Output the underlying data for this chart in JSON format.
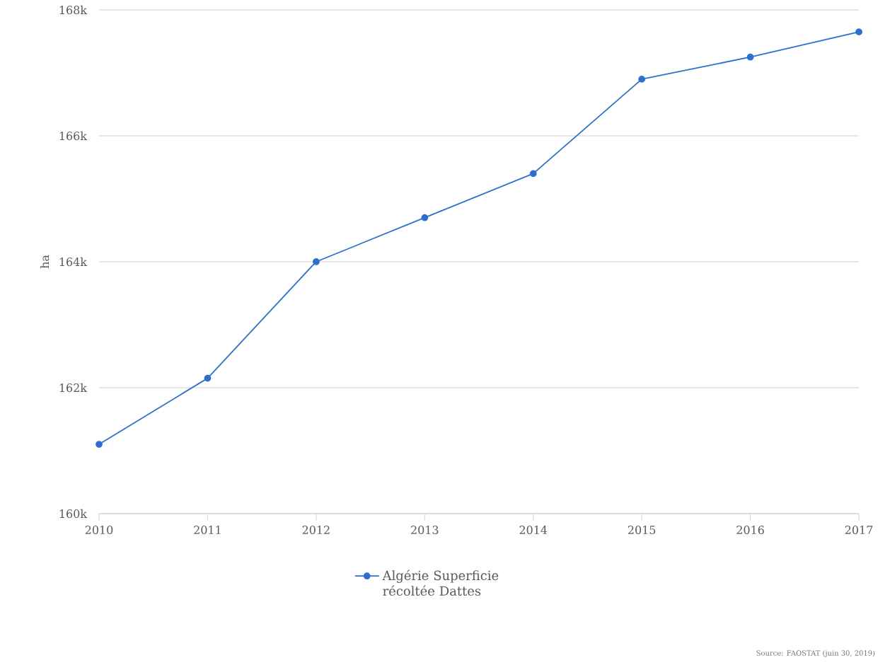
{
  "chart_data": {
    "type": "line",
    "ylabel": "ha",
    "categories": [
      "2010",
      "2011",
      "2012",
      "2013",
      "2014",
      "2015",
      "2016",
      "2017"
    ],
    "series": [
      {
        "name": "Algérie Superficie récoltée Dattes",
        "color": "#2e6fcc",
        "values": [
          161100,
          162150,
          164000,
          164700,
          165400,
          166900,
          167250,
          167650
        ]
      }
    ],
    "ylim": [
      160000,
      168000
    ],
    "yticks": [
      {
        "value": 160000,
        "label": "160k"
      },
      {
        "value": 162000,
        "label": "162k"
      },
      {
        "value": 164000,
        "label": "164k"
      },
      {
        "value": 166000,
        "label": "166k"
      },
      {
        "value": 168000,
        "label": "168k"
      }
    ],
    "grid": "y",
    "legend": "bottom",
    "marker": "circle",
    "line_style": "solid",
    "annotations": [
      "Source: FAOSTAT (juin 30, 2019)"
    ]
  }
}
